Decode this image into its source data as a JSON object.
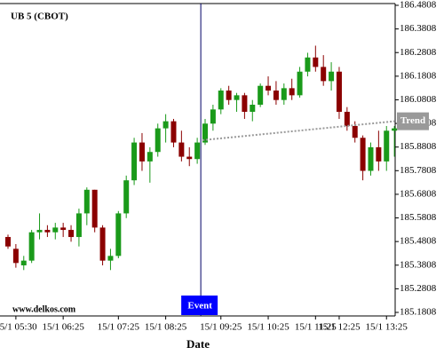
{
  "chart_data": {
    "type": "candlestick",
    "title": "UB 5 (CBOT)",
    "x_label": "Date",
    "watermark": "www.delkos.com",
    "categories": [
      null,
      "15/1 05:30",
      null,
      null,
      null,
      null,
      null,
      "15/1 06:25",
      null,
      null,
      null,
      null,
      null,
      null,
      "15/1 07:25",
      null,
      null,
      null,
      null,
      null,
      "15/1 08:25",
      null,
      null,
      null,
      null,
      null,
      null,
      "15/1 09:25",
      null,
      null,
      null,
      null,
      null,
      "15/1 10:25",
      null,
      null,
      null,
      null,
      null,
      "15/1 11:25",
      null,
      null,
      "15/1 12:25",
      null,
      null,
      null,
      null,
      null,
      "15/1 13:25",
      null
    ],
    "open": [
      185.5,
      185.45,
      185.38,
      185.4,
      185.52,
      185.53,
      185.52,
      185.54,
      185.53,
      185.5,
      185.6,
      185.7,
      185.54,
      185.4,
      185.42,
      185.6,
      185.74,
      185.9,
      185.82,
      185.86,
      185.96,
      185.99,
      185.9,
      185.84,
      185.83,
      185.9,
      185.98,
      186.04,
      186.12,
      186.08,
      186.1,
      186.03,
      186.06,
      186.14,
      186.12,
      186.08,
      186.13,
      186.1,
      186.2,
      186.26,
      186.22,
      186.16,
      186.2,
      186.03,
      185.97,
      185.92,
      185.78,
      185.88,
      185.82,
      185.95
    ],
    "high": [
      185.51,
      185.47,
      185.42,
      185.53,
      185.6,
      185.55,
      185.56,
      185.56,
      185.55,
      185.62,
      185.71,
      185.7,
      185.55,
      185.45,
      185.61,
      185.76,
      185.92,
      185.94,
      185.88,
      185.98,
      186.02,
      186.0,
      185.95,
      185.88,
      185.92,
      186.0,
      186.06,
      186.13,
      186.14,
      186.11,
      186.11,
      186.08,
      186.15,
      186.18,
      186.16,
      186.15,
      186.17,
      186.22,
      186.28,
      186.31,
      186.27,
      186.24,
      186.22,
      186.05,
      185.99,
      185.93,
      185.9,
      185.95,
      185.97,
      185.97
    ],
    "low": [
      185.45,
      185.37,
      185.36,
      185.39,
      185.49,
      185.5,
      185.49,
      185.5,
      185.48,
      185.46,
      185.55,
      185.52,
      185.38,
      185.36,
      185.41,
      185.58,
      185.72,
      185.78,
      185.73,
      185.84,
      185.9,
      185.88,
      185.82,
      185.8,
      185.81,
      185.89,
      185.95,
      186.02,
      186.06,
      186.03,
      186.0,
      185.99,
      186.05,
      186.1,
      186.06,
      186.06,
      186.08,
      186.09,
      186.18,
      186.2,
      186.14,
      186.12,
      186.0,
      185.95,
      185.9,
      185.74,
      185.76,
      185.78,
      185.78,
      185.84
    ],
    "close": [
      185.46,
      185.39,
      185.4,
      185.52,
      185.53,
      185.52,
      185.54,
      185.53,
      185.5,
      185.6,
      185.7,
      185.54,
      185.4,
      185.42,
      185.6,
      185.74,
      185.9,
      185.82,
      185.86,
      185.96,
      185.99,
      185.9,
      185.84,
      185.83,
      185.9,
      185.98,
      186.04,
      186.12,
      186.08,
      186.1,
      186.03,
      186.06,
      186.14,
      186.12,
      186.08,
      186.13,
      186.1,
      186.2,
      186.26,
      186.22,
      186.16,
      186.2,
      186.03,
      185.97,
      185.92,
      185.78,
      185.88,
      185.82,
      185.95,
      185.96
    ],
    "up_color": "#1a9a1a",
    "down_color": "#8b0000",
    "ylim": [
      185.1808,
      186.4808
    ],
    "yticks": [
      185.1808,
      185.2808,
      185.3808,
      185.4808,
      185.5808,
      185.6808,
      185.7808,
      185.8808,
      185.9808,
      186.0808,
      186.1808,
      186.2808,
      186.3808,
      186.4808
    ],
    "trend": {
      "label": "Trend",
      "start": 24,
      "end": 49,
      "start_value": 185.91,
      "end_value": 185.99,
      "color": "#999999"
    },
    "event": {
      "label": "Event",
      "at": 24,
      "color": "#0000ff"
    }
  }
}
